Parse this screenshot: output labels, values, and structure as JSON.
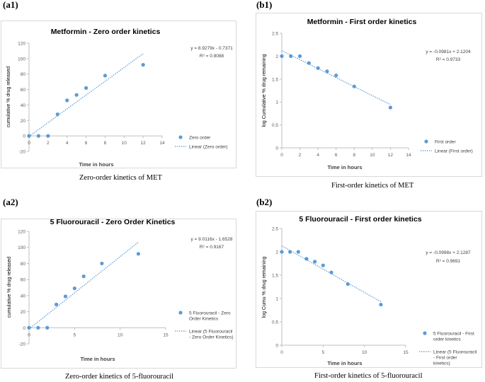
{
  "panels": [
    {
      "label": "(a1)",
      "caption": "Zero-order kinetics of MET",
      "chart_data": {
        "type": "scatter",
        "title": "Metformin - Zero order kinetics",
        "xlabel": "Time in hours",
        "ylabel": "cumulative % drug released",
        "xlim": [
          0,
          14
        ],
        "xticks": [
          0,
          2,
          4,
          6,
          8,
          10,
          12,
          14
        ],
        "ylim": [
          -20,
          120
        ],
        "yticks": [
          -20,
          0,
          20,
          40,
          60,
          80,
          100,
          120
        ],
        "x": [
          0,
          1,
          2,
          3,
          4,
          5,
          6,
          8,
          12
        ],
        "y": [
          0,
          0,
          0,
          28,
          46,
          53,
          62,
          78,
          92
        ],
        "trendline": {
          "slope": 8.9279,
          "intercept": -0.7371,
          "x_range": [
            0,
            12
          ]
        },
        "equation": "y = 8.9279x - 0.7371",
        "r2": "R² = 0.9088",
        "legend": {
          "series": "Zero order",
          "trend": "Linear (Zero order)"
        }
      }
    },
    {
      "label": "(b1)",
      "caption": "First-order kinetics of MET",
      "chart_data": {
        "type": "scatter",
        "title": "Metformin - First order kinetics",
        "xlabel": "Time in hours",
        "ylabel": "log Cumulative % drug remaining",
        "xlim": [
          0,
          14
        ],
        "xticks": [
          0,
          2,
          4,
          6,
          8,
          10,
          12,
          14
        ],
        "ylim": [
          0,
          2.5
        ],
        "yticks": [
          0,
          0.5,
          1,
          1.5,
          2,
          2.5
        ],
        "x": [
          0,
          1,
          2,
          3,
          4,
          5,
          6,
          8,
          12
        ],
        "y": [
          2.0,
          2.0,
          2.0,
          1.85,
          1.74,
          1.67,
          1.58,
          1.34,
          0.88
        ],
        "trendline": {
          "slope": -0.0981,
          "intercept": 2.1204,
          "x_range": [
            0,
            12
          ]
        },
        "equation": "y = -0.0981x + 2.1204",
        "r2": "R² = 0.9733",
        "legend": {
          "series": "First order",
          "trend": "Linear (First order)"
        }
      }
    },
    {
      "label": "(a2)",
      "caption": "Zero-order kinetics of 5-fluorouracil",
      "chart_data": {
        "type": "scatter",
        "title": "5 Fluorouracil - Zero Order Kinetics",
        "xlabel": "Time in hours",
        "ylabel": "cumulative % drug released",
        "xlim": [
          0,
          15
        ],
        "xticks": [
          0,
          5,
          10,
          15
        ],
        "ylim": [
          -20,
          120
        ],
        "yticks": [
          -20,
          0,
          20,
          40,
          60,
          80,
          100,
          120
        ],
        "x": [
          0,
          1,
          2,
          3,
          4,
          5,
          6,
          8,
          12
        ],
        "y": [
          0,
          0,
          0,
          29,
          39,
          49,
          64,
          80,
          92
        ],
        "trendline": {
          "slope": 9.0116,
          "intercept": -1.6528,
          "x_range": [
            0,
            12
          ]
        },
        "equation": "y = 9.0116x - 1.6528",
        "r2": "R² = 0.9167",
        "legend": {
          "series": "5 Fluorouracil - Zero Order Kinetics",
          "trend": "Linear (5 Fluorouracil - Zero Order Kinetics)"
        }
      }
    },
    {
      "label": "(b2)",
      "caption": "First-order kinetics of 5-fluorouracil",
      "chart_data": {
        "type": "scatter",
        "title": "5 Fluorouracil - First order kinetics",
        "xlabel": "Time in hours",
        "ylabel": "log Cumu % drug remaining",
        "xlim": [
          0,
          15
        ],
        "xticks": [
          0,
          5,
          10,
          15
        ],
        "ylim": [
          0,
          2.5
        ],
        "yticks": [
          0,
          0.5,
          1,
          1.5,
          2,
          2.5
        ],
        "x": [
          0,
          1,
          2,
          3,
          4,
          5,
          6,
          8,
          12
        ],
        "y": [
          2.0,
          2.0,
          2.0,
          1.85,
          1.79,
          1.71,
          1.56,
          1.31,
          0.87
        ],
        "trendline": {
          "slope": -0.0998,
          "intercept": 2.1287,
          "x_range": [
            0,
            12
          ]
        },
        "equation": "y = -0.0998x + 2.1287",
        "r2": "R² = 0.9691",
        "legend": {
          "series": "5 Fluorouracil - First order kinetics",
          "trend": "Linear (5 Fluorouracil - First order kinetics)"
        }
      }
    }
  ],
  "colors": {
    "marker": "#5b9bd5",
    "trend": "#5b9bd5",
    "axis": "#bfbfbf",
    "tick_text": "#595959",
    "title_text": "#000000",
    "border": "#d9d9d9"
  }
}
